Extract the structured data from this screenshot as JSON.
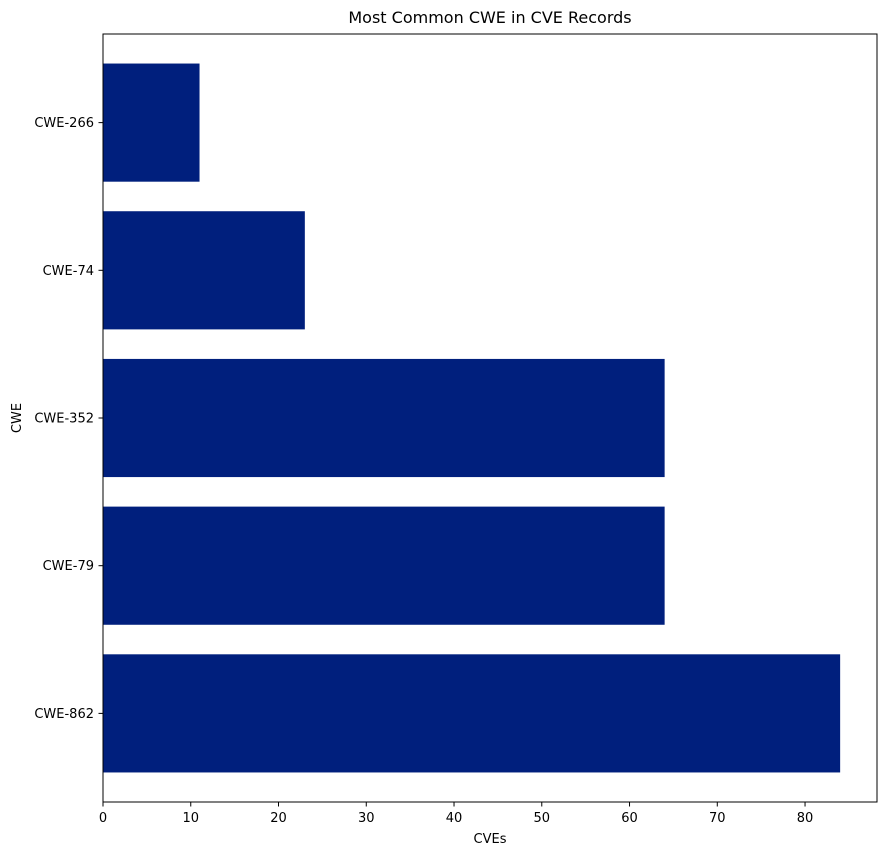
{
  "chart_data": {
    "type": "bar",
    "orientation": "horizontal",
    "title": "Most Common CWE in CVE Records",
    "xlabel": "CVEs",
    "ylabel": "CWE",
    "categories": [
      "CWE-862",
      "CWE-79",
      "CWE-352",
      "CWE-74",
      "CWE-266"
    ],
    "values": [
      84,
      64,
      64,
      23,
      11
    ],
    "xlim": [
      0,
      88.2
    ],
    "xticks": [
      0,
      10,
      20,
      30,
      40,
      50,
      60,
      70,
      80
    ],
    "grid": false,
    "legend": "none",
    "bar_color": "#001f7d"
  }
}
